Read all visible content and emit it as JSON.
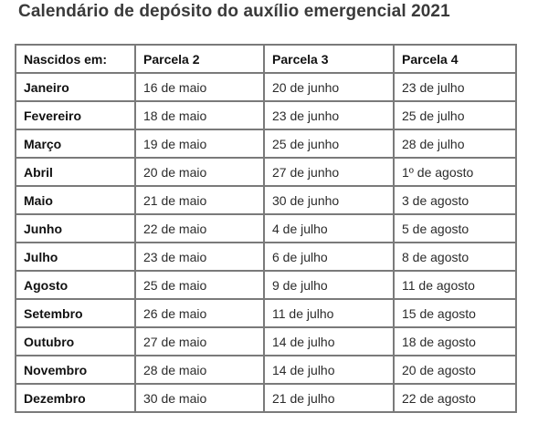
{
  "title": "Calendário de depósito do auxílio emergencial 2021",
  "table": {
    "headers": [
      "Nascidos em:",
      "Parcela 2",
      "Parcela 3",
      "Parcela 4"
    ],
    "rows": [
      [
        "Janeiro",
        "16 de maio",
        "20 de junho",
        "23 de julho"
      ],
      [
        "Fevereiro",
        "18 de maio",
        "23 de junho",
        "25 de julho"
      ],
      [
        "Março",
        "19 de maio",
        "25 de junho",
        "28 de julho"
      ],
      [
        "Abril",
        "20 de maio",
        "27 de junho",
        "1º de agosto"
      ],
      [
        "Maio",
        "21 de maio",
        "30 de junho",
        "3 de agosto"
      ],
      [
        "Junho",
        "22 de maio",
        "4 de julho",
        "5 de agosto"
      ],
      [
        "Julho",
        "23 de maio",
        "6 de julho",
        "8 de agosto"
      ],
      [
        "Agosto",
        "25 de maio",
        "9 de julho",
        "11 de agosto"
      ],
      [
        "Setembro",
        "26 de maio",
        "11 de julho",
        "15 de agosto"
      ],
      [
        "Outubro",
        "27 de maio",
        "14 de julho",
        "18 de agosto"
      ],
      [
        "Novembro",
        "28 de maio",
        "14 de julho",
        "20 de agosto"
      ],
      [
        "Dezembro",
        "30 de maio",
        "21 de julho",
        "22 de agosto"
      ]
    ]
  }
}
